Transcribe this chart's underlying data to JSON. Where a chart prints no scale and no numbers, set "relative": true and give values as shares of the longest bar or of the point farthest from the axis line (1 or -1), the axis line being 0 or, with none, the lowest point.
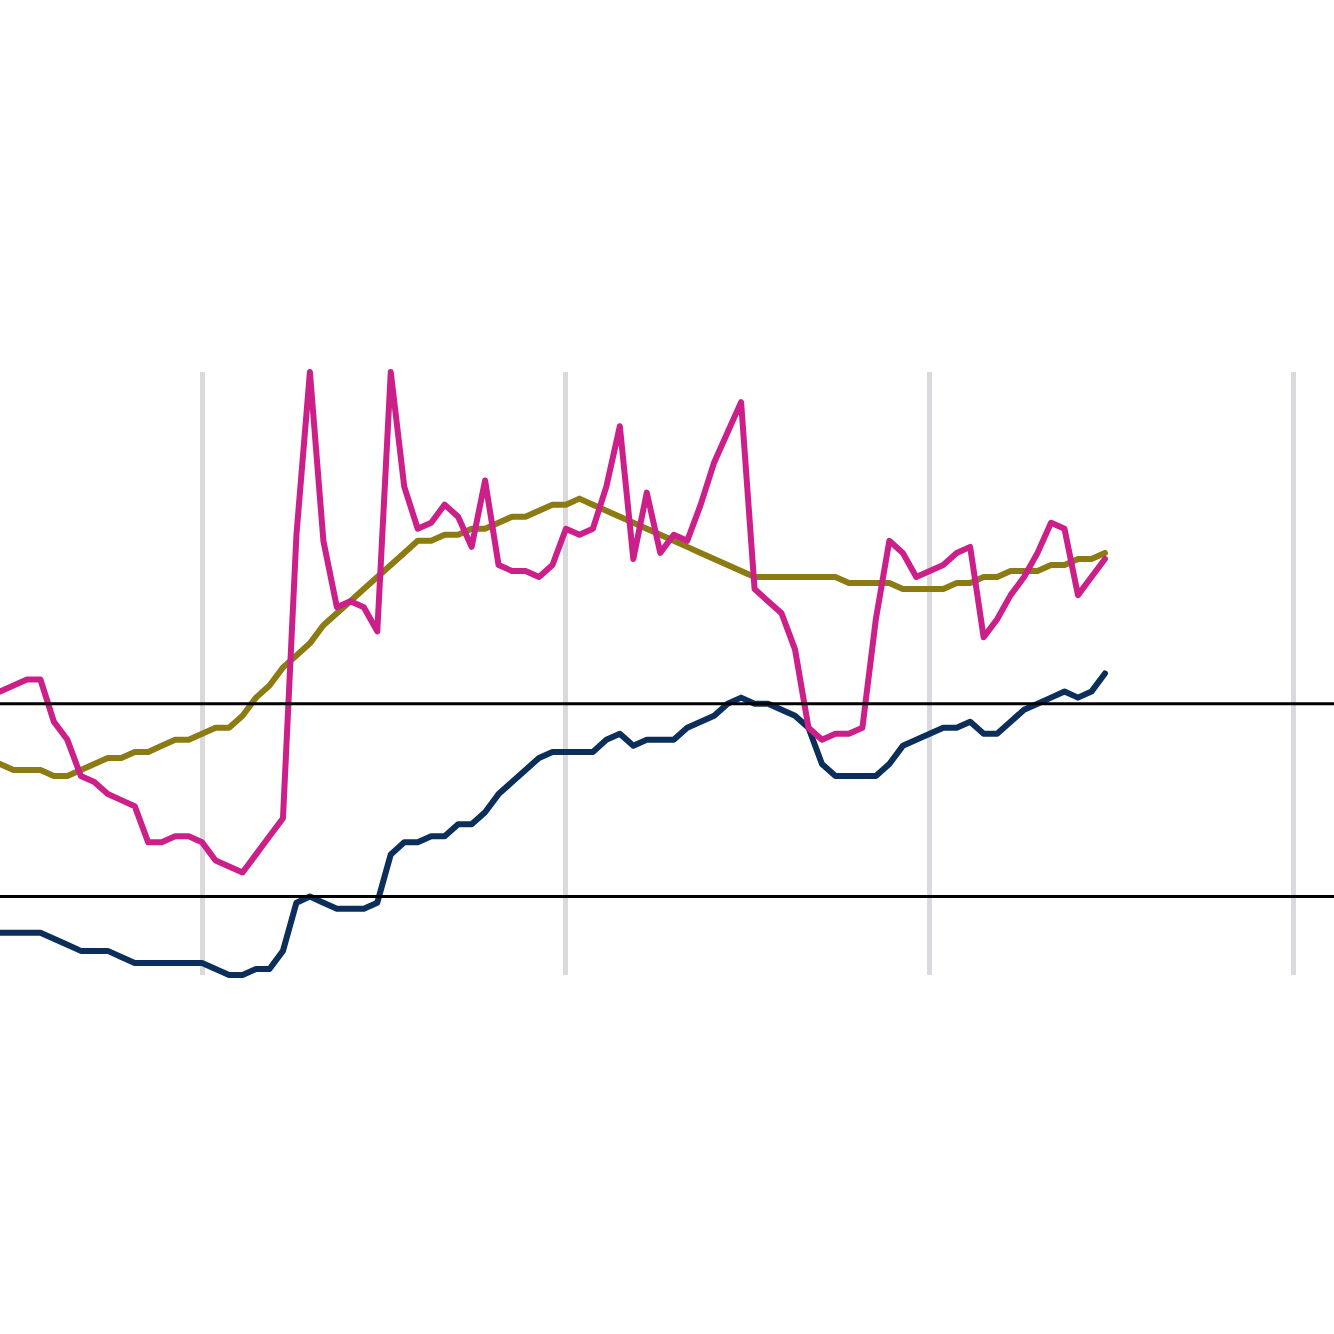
{
  "chart_data": {
    "type": "line",
    "relative": true,
    "grid": "x",
    "categories": [
      null,
      null,
      null,
      null,
      null,
      null,
      null,
      null,
      null,
      null,
      null,
      null,
      null,
      null,
      null,
      null,
      null,
      null,
      null,
      null,
      null,
      null,
      null,
      null,
      null,
      null,
      null,
      null,
      null,
      null,
      null,
      null,
      null,
      null,
      null,
      null,
      null,
      null,
      null,
      null,
      null,
      null,
      null,
      null,
      null,
      null,
      null,
      null,
      null,
      null,
      null,
      null,
      null,
      null,
      null,
      null,
      null,
      null,
      null,
      null,
      null,
      null,
      null,
      null,
      null,
      null,
      null,
      null,
      null,
      null,
      null,
      null,
      null,
      null,
      null,
      null,
      null,
      null,
      null,
      null,
      null,
      null,
      null,
      null,
      null,
      null,
      null,
      null,
      null,
      null,
      null,
      null,
      null,
      null,
      null,
      null,
      null,
      null,
      null,
      null
    ],
    "series": [
      {
        "color": "#cc1f8a",
        "values": [
          0.47,
          0.48,
          0.49,
          0.49,
          0.42,
          0.39,
          0.33,
          0.32,
          0.3,
          0.29,
          0.28,
          0.22,
          0.22,
          0.23,
          0.23,
          0.22,
          0.19,
          0.18,
          0.17,
          0.2,
          0.23,
          0.26,
          0.73,
          1.0,
          0.72,
          0.61,
          0.62,
          0.61,
          0.57,
          1.0,
          0.81,
          0.74,
          0.75,
          0.78,
          0.76,
          0.71,
          0.82,
          0.68,
          0.67,
          0.67,
          0.66,
          0.68,
          0.74,
          0.73,
          0.74,
          0.81,
          0.91,
          0.69,
          0.8,
          0.7,
          0.73,
          0.72,
          0.78,
          0.85,
          0.9,
          0.95,
          0.64,
          0.62,
          0.6,
          0.54,
          0.41,
          0.39,
          0.4,
          0.4,
          0.41,
          0.59,
          0.72,
          0.7,
          0.66,
          0.67,
          0.68,
          0.7,
          0.71,
          0.56,
          0.59,
          0.63,
          0.66,
          0.7,
          0.75,
          0.74,
          0.63,
          0.66,
          0.69,
          null,
          null,
          null,
          null,
          null,
          null,
          null,
          null,
          null,
          null,
          null,
          null,
          null,
          null,
          null,
          null,
          null
        ]
      },
      {
        "color": "#8c7a12",
        "values": [
          0.35,
          0.34,
          0.34,
          0.34,
          0.33,
          0.33,
          0.34,
          0.35,
          0.36,
          0.36,
          0.37,
          0.37,
          0.38,
          0.39,
          0.39,
          0.4,
          0.41,
          0.41,
          0.43,
          0.46,
          0.48,
          0.51,
          0.53,
          0.55,
          0.58,
          0.6,
          0.62,
          0.64,
          0.66,
          0.68,
          0.7,
          0.72,
          0.72,
          0.73,
          0.73,
          0.74,
          0.74,
          0.75,
          0.76,
          0.76,
          0.77,
          0.78,
          0.78,
          0.79,
          0.78,
          0.77,
          0.76,
          0.75,
          0.74,
          0.73,
          0.72,
          0.71,
          0.7,
          0.69,
          0.68,
          0.67,
          0.66,
          0.66,
          0.66,
          0.66,
          0.66,
          0.66,
          0.66,
          0.65,
          0.65,
          0.65,
          0.65,
          0.64,
          0.64,
          0.64,
          0.64,
          0.65,
          0.65,
          0.66,
          0.66,
          0.67,
          0.67,
          0.67,
          0.68,
          0.68,
          0.69,
          0.69,
          0.7,
          null,
          null,
          null,
          null,
          null,
          null,
          null,
          null,
          null,
          null,
          null,
          null,
          null,
          null,
          null,
          null,
          null
        ]
      },
      {
        "color": "#0b2f5a",
        "values": [
          0.07,
          0.07,
          0.07,
          0.07,
          0.06,
          0.05,
          0.04,
          0.04,
          0.04,
          0.03,
          0.02,
          0.02,
          0.02,
          0.02,
          0.02,
          0.02,
          0.01,
          0,
          0,
          0.01,
          0.01,
          0.04,
          0.12,
          0.13,
          0.12,
          0.11,
          0.11,
          0.11,
          0.12,
          0.2,
          0.22,
          0.22,
          0.23,
          0.23,
          0.25,
          0.25,
          0.27,
          0.3,
          0.32,
          0.34,
          0.36,
          0.37,
          0.37,
          0.37,
          0.37,
          0.39,
          0.4,
          0.38,
          0.39,
          0.39,
          0.39,
          0.41,
          0.42,
          0.43,
          0.45,
          0.46,
          0.45,
          0.45,
          0.44,
          0.43,
          0.41,
          0.35,
          0.33,
          0.33,
          0.33,
          0.33,
          0.35,
          0.38,
          0.39,
          0.4,
          0.41,
          0.41,
          0.42,
          0.4,
          0.4,
          0.42,
          0.44,
          0.45,
          0.46,
          0.47,
          0.46,
          0.47,
          0.5,
          null,
          null,
          null,
          null,
          null,
          null,
          null,
          null,
          null,
          null,
          null,
          null,
          null,
          null,
          null,
          null,
          null
        ]
      }
    ],
    "ref_lines": [
      {
        "axis": "y",
        "value": 0.45,
        "color": "#000000"
      },
      {
        "axis": "y",
        "value": 0.13,
        "color": "#000000"
      }
    ]
  }
}
